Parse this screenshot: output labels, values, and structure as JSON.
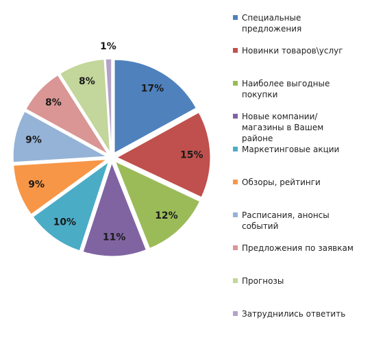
{
  "chart_data": {
    "type": "pie",
    "categories": [
      "Специальные предложения",
      "Новинки товаров\\услуг",
      "Наиболее выгодные покупки",
      "Новые компании/магазины в Вашем районе",
      "Маркетинговые акции",
      "Обзоры, рейтинги",
      "Расписания, анонсы событий",
      "Предложения по заявкам",
      "Прогнозы",
      "Затруднились ответить"
    ],
    "values": [
      17,
      15,
      12,
      11,
      10,
      9,
      9,
      8,
      8,
      1
    ],
    "value_labels": [
      "17%",
      "15%",
      "12%",
      "11%",
      "10%",
      "9%",
      "9%",
      "8%",
      "8%",
      "1%"
    ],
    "colors": [
      "#4f81bd",
      "#c0504d",
      "#9bbb59",
      "#8064a2",
      "#4bacc6",
      "#f79646",
      "#95b3d7",
      "#d99694",
      "#c3d69b",
      "#b3a2c7"
    ],
    "legend": "right"
  }
}
